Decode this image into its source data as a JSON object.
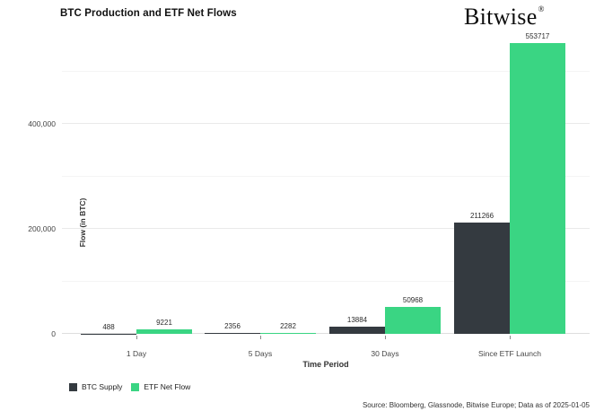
{
  "header": {
    "title": "BTC Production and ETF Net Flows",
    "brand": "Bitwise",
    "brand_mark": "®"
  },
  "chart_data": {
    "type": "bar",
    "title": "BTC Production and ETF Net Flows",
    "categories": [
      "1 Day",
      "5 Days",
      "30 Days",
      "Since ETF Launch"
    ],
    "series": [
      {
        "name": "BTC Supply",
        "color": "#343a40",
        "values": [
          488,
          2356,
          13884,
          211266
        ],
        "labels": [
          "488",
          "2356",
          "13884",
          "211266"
        ]
      },
      {
        "name": "ETF Net Flow",
        "color": "#3ad583",
        "values": [
          9221,
          2282,
          50968,
          553717
        ],
        "labels": [
          "9221",
          "2282",
          "50968",
          "553717"
        ]
      }
    ],
    "xlabel": "Time Period",
    "ylabel": "Flow (in BTC)",
    "ylim": [
      0,
      560000
    ],
    "yticks": [
      {
        "value": 0,
        "label": "0"
      },
      {
        "value": 200000,
        "label": "200,000"
      },
      {
        "value": 400000,
        "label": "400,000"
      }
    ],
    "minor_gridlines": [
      100000,
      300000,
      500000
    ],
    "grid": true,
    "legend_position": "bottom-left"
  },
  "footer": {
    "source": "Source: Bloomberg, Glassnode, Bitwise Europe; Data as of 2025-01-05"
  },
  "colors": {
    "btc_supply": "#343a40",
    "etf_net_flow": "#3ad583",
    "grid_major": "#e9e9e9",
    "grid_minor": "#f4f4f4",
    "baseline": "#dedede"
  }
}
